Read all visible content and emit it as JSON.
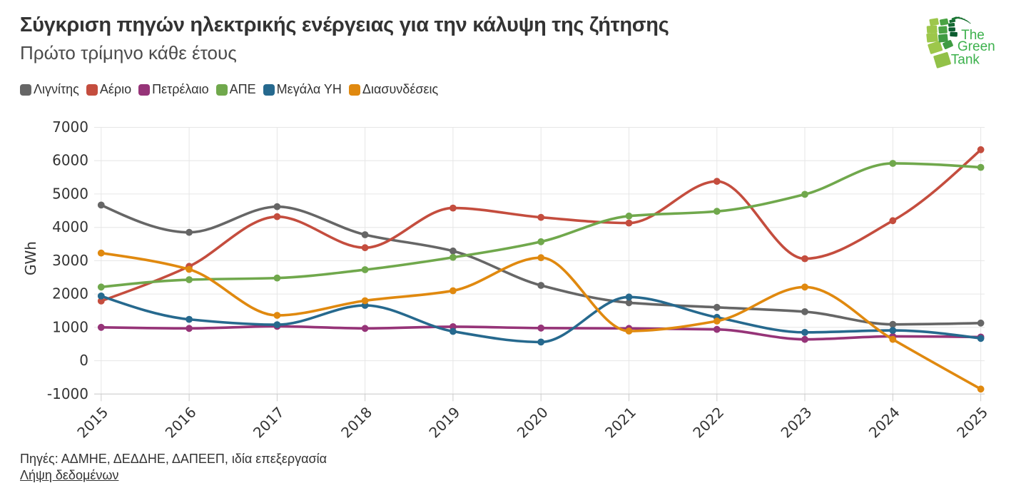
{
  "header": {
    "title": "Σύγκριση πηγών ηλεκτρικής ενέργειας για την κάλυψη της ζήτησης",
    "subtitle": "Πρώτο τρίμηνο κάθε έτους"
  },
  "logo": {
    "lines": [
      "The",
      "Green",
      "Tank"
    ],
    "text_color": "#3cb14c",
    "palette": {
      "light": "#9dc74b",
      "light2": "#92c148",
      "mid": "#4aa344",
      "mid2": "#3f9b42",
      "dark": "#0b5c2f",
      "dark2": "#156b33",
      "dark3": "#1d7a37",
      "tail": "#17702f"
    }
  },
  "chart_data": {
    "type": "line",
    "title": "Σύγκριση πηγών ηλεκτρικής ενέργειας για την κάλυψη της ζήτησης",
    "subtitle": "Πρώτο τρίμηνο κάθε έτους",
    "xlabel": "",
    "ylabel": "GWh",
    "x": [
      2015,
      2016,
      2017,
      2018,
      2019,
      2020,
      2021,
      2022,
      2023,
      2024,
      2025
    ],
    "ylim": [
      -1000,
      7000
    ],
    "ytick_step": 1000,
    "grid": true,
    "legend_position": "top",
    "series": [
      {
        "name": "Λιγνίτης",
        "color": "#666666",
        "values": [
          4670,
          3850,
          4620,
          3780,
          3290,
          2260,
          1740,
          1600,
          1470,
          1090,
          1130
        ]
      },
      {
        "name": "Αέριο",
        "color": "#c44d3e",
        "values": [
          1790,
          2830,
          4320,
          3390,
          4580,
          4300,
          4130,
          5380,
          3060,
          4200,
          6330
        ]
      },
      {
        "name": "Πετρέλαιο",
        "color": "#963478",
        "values": [
          1000,
          970,
          1030,
          970,
          1020,
          980,
          970,
          940,
          640,
          730,
          710
        ]
      },
      {
        "name": "ΑΠΕ",
        "color": "#70a84c",
        "values": [
          2210,
          2430,
          2480,
          2730,
          3100,
          3570,
          4340,
          4480,
          4990,
          5920,
          5800
        ]
      },
      {
        "name": "Μεγάλα ΥΗ",
        "color": "#26698e",
        "values": [
          1940,
          1240,
          1080,
          1660,
          880,
          560,
          1910,
          1300,
          850,
          910,
          670
        ]
      },
      {
        "name": "Διασυνδέσεις",
        "color": "#e0890f",
        "values": [
          3230,
          2740,
          1360,
          1800,
          2100,
          3090,
          890,
          1190,
          2210,
          640,
          -850
        ]
      }
    ]
  },
  "footer": {
    "source": "Πηγές: ΑΔΜΗΕ, ΔΕΔΔΗΕ, ΔΑΠΕΕΠ, ιδία επεξεργασία",
    "link_label": "Λήψη δεδομένων"
  }
}
